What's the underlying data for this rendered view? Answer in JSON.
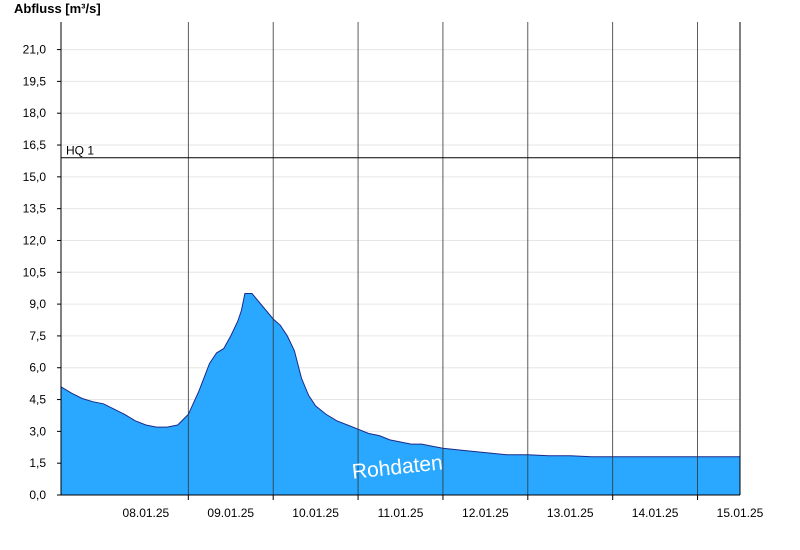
{
  "chart_data": {
    "type": "area",
    "title": "Abfluss [m³/s]",
    "ylim": [
      0,
      22.3
    ],
    "yticks": [
      "0,0",
      "1,5",
      "3,0",
      "4,5",
      "6,0",
      "7,5",
      "9,0",
      "10,5",
      "12,0",
      "13,5",
      "15,0",
      "16,5",
      "18,0",
      "19,5",
      "21,0"
    ],
    "xlim": [
      "07.01.25 12:00",
      "15.01.25 12:00"
    ],
    "xticks": [
      "08.01.25",
      "09.01.25",
      "10.01.25",
      "11.01.25",
      "12.01.25",
      "13.01.25",
      "14.01.25",
      "15.01.25"
    ],
    "grid": true,
    "reference_line": {
      "label": "HQ 1",
      "value": 15.9
    },
    "watermark": "Rohdaten",
    "colors": {
      "fill": "#2aa8ff",
      "line": "#1a2a8a",
      "grid": "#e6e6e6"
    },
    "series": [
      {
        "x": [
          "07.01.25 12:00",
          "07.01.25 15:00",
          "07.01.25 18:00",
          "07.01.25 21:00",
          "08.01.25 00:00",
          "08.01.25 03:00",
          "08.01.25 06:00",
          "08.01.25 09:00",
          "08.01.25 12:00",
          "08.01.25 15:00",
          "08.01.25 18:00",
          "08.01.25 21:00",
          "09.01.25 00:00",
          "09.01.25 03:00",
          "09.01.25 06:00",
          "09.01.25 08:00",
          "09.01.25 10:00",
          "09.01.25 12:00",
          "09.01.25 14:00",
          "09.01.25 15:00",
          "09.01.25 16:00",
          "09.01.25 18:00",
          "09.01.25 20:00",
          "09.01.25 22:00",
          "10.01.25 00:00",
          "10.01.25 02:00",
          "10.01.25 04:00",
          "10.01.25 06:00",
          "10.01.25 08:00",
          "10.01.25 10:00",
          "10.01.25 12:00",
          "10.01.25 15:00",
          "10.01.25 18:00",
          "10.01.25 21:00",
          "11.01.25 00:00",
          "11.01.25 03:00",
          "11.01.25 06:00",
          "11.01.25 09:00",
          "11.01.25 12:00",
          "11.01.25 15:00",
          "11.01.25 18:00",
          "11.01.25 21:00",
          "12.01.25 00:00",
          "12.01.25 06:00",
          "12.01.25 12:00",
          "12.01.25 18:00",
          "13.01.25 00:00",
          "13.01.25 06:00",
          "13.01.25 12:00",
          "13.01.25 18:00",
          "14.01.25 00:00",
          "14.01.25 06:00",
          "14.01.25 12:00",
          "14.01.25 18:00",
          "15.01.25 00:00",
          "15.01.25 06:00",
          "15.01.25 12:00"
        ],
        "values": [
          5.1,
          4.8,
          4.55,
          4.4,
          4.3,
          4.05,
          3.8,
          3.5,
          3.3,
          3.2,
          3.2,
          3.3,
          3.8,
          4.9,
          6.2,
          6.7,
          6.9,
          7.5,
          8.2,
          8.7,
          9.5,
          9.5,
          9.1,
          8.7,
          8.3,
          8.0,
          7.5,
          6.8,
          5.5,
          4.7,
          4.2,
          3.8,
          3.5,
          3.3,
          3.1,
          2.9,
          2.8,
          2.6,
          2.5,
          2.4,
          2.4,
          2.3,
          2.2,
          2.1,
          2.0,
          1.9,
          1.9,
          1.85,
          1.85,
          1.8,
          1.8,
          1.8,
          1.8,
          1.8,
          1.8,
          1.8,
          1.8
        ]
      }
    ]
  }
}
